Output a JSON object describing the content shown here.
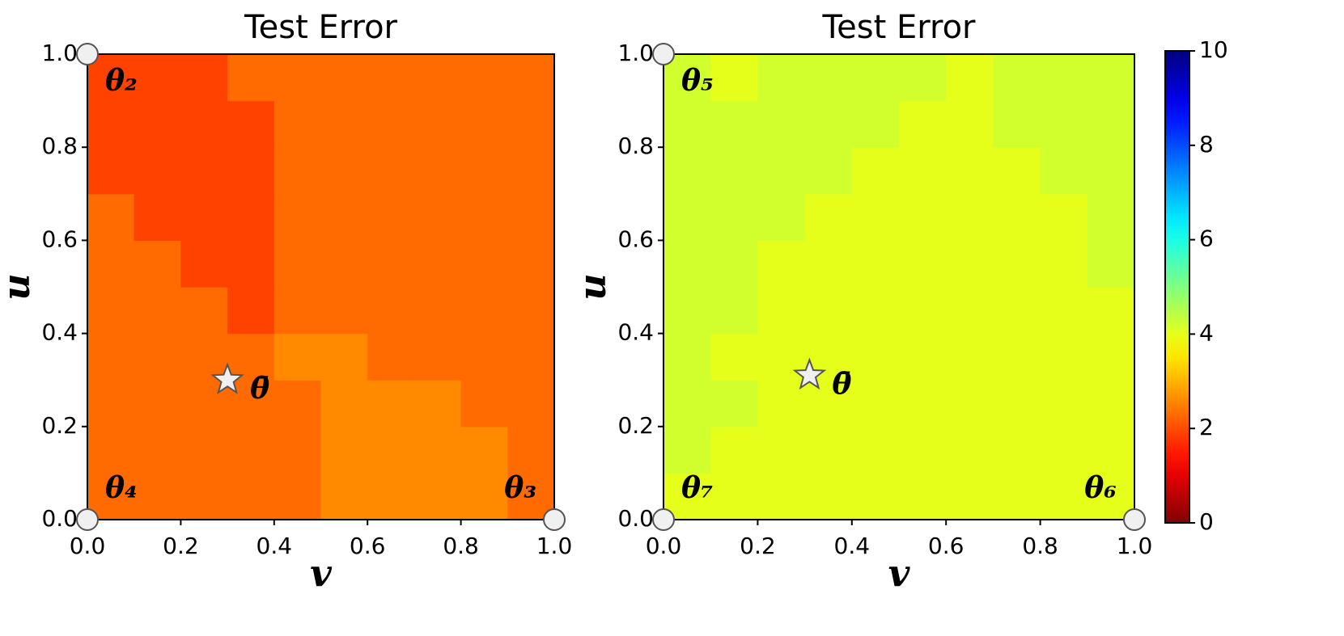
{
  "chart_data": [
    {
      "type": "heatmap",
      "title": "Test Error",
      "xlabel": "v",
      "ylabel": "u",
      "colormap": "jet_r",
      "clim": [
        0,
        10
      ],
      "xlim": [
        0,
        1
      ],
      "ylim": [
        0,
        1
      ],
      "xticks": [
        {
          "value": 0,
          "label": "0.0"
        },
        0.2,
        0.4,
        0.6,
        0.8,
        {
          "value": 1,
          "label": "1.0"
        }
      ],
      "yticks": [
        {
          "value": 0,
          "label": "0.0"
        },
        0.2,
        0.4,
        0.6,
        0.8,
        {
          "value": 1,
          "label": "1.0"
        }
      ],
      "z": [
        [
          2.3,
          2.3,
          2.3,
          2.3,
          2.3,
          2.6,
          2.6,
          2.6,
          2.6,
          2.3
        ],
        [
          2.3,
          2.3,
          2.3,
          2.3,
          2.3,
          2.6,
          2.6,
          2.6,
          2.6,
          2.3
        ],
        [
          2.3,
          2.3,
          2.3,
          2.3,
          2.3,
          2.6,
          2.6,
          2.6,
          2.3,
          2.3
        ],
        [
          2.3,
          2.3,
          2.3,
          2.3,
          2.6,
          2.6,
          2.3,
          2.3,
          2.3,
          2.3
        ],
        [
          2.3,
          2.3,
          2.3,
          1.9,
          2.3,
          2.3,
          2.3,
          2.3,
          2.3,
          2.3
        ],
        [
          2.3,
          2.3,
          1.9,
          1.9,
          2.3,
          2.3,
          2.3,
          2.3,
          2.3,
          2.3
        ],
        [
          2.3,
          1.9,
          1.9,
          1.9,
          2.3,
          2.3,
          2.3,
          2.3,
          2.3,
          2.3
        ],
        [
          1.9,
          1.9,
          1.9,
          1.9,
          2.3,
          2.3,
          2.3,
          2.3,
          2.3,
          2.3
        ],
        [
          1.9,
          1.9,
          1.9,
          1.9,
          2.3,
          2.3,
          2.3,
          2.3,
          2.3,
          2.3
        ],
        [
          1.9,
          1.9,
          1.9,
          2.3,
          2.3,
          2.3,
          2.3,
          2.3,
          2.3,
          2.3
        ]
      ],
      "annotations": [
        {
          "label": "θ₂",
          "x": 0,
          "y": 1,
          "marker": "circle"
        },
        {
          "label": "θ₄",
          "x": 0,
          "y": 0,
          "marker": "circle"
        },
        {
          "label": "θ₃",
          "x": 1,
          "y": 0,
          "marker": "circle"
        },
        {
          "label": "θ̄",
          "x": 0.3,
          "y": 0.3,
          "marker": "star"
        }
      ]
    },
    {
      "type": "heatmap",
      "title": "Test Error",
      "xlabel": "v",
      "ylabel": "u",
      "colormap": "jet_r",
      "clim": [
        0,
        10
      ],
      "xlim": [
        0,
        1
      ],
      "ylim": [
        0,
        1
      ],
      "xticks": [
        {
          "value": 0,
          "label": "0.0"
        },
        0.2,
        0.4,
        0.6,
        0.8,
        {
          "value": 1,
          "label": "1.0"
        }
      ],
      "yticks": [
        {
          "value": 0,
          "label": "0.0"
        },
        0.2,
        0.4,
        0.6,
        0.8,
        {
          "value": 1,
          "label": "1.0"
        }
      ],
      "z": [
        [
          4.0,
          4.0,
          4.0,
          4.0,
          4.0,
          4.0,
          4.0,
          4.0,
          4.0,
          4.0
        ],
        [
          4.2,
          4.0,
          4.0,
          4.0,
          4.0,
          4.0,
          4.0,
          4.0,
          4.0,
          4.0
        ],
        [
          4.2,
          4.2,
          4.0,
          4.0,
          4.0,
          4.0,
          4.0,
          4.0,
          4.0,
          4.0
        ],
        [
          4.2,
          4.0,
          4.0,
          4.0,
          4.0,
          4.0,
          4.0,
          4.0,
          4.0,
          4.0
        ],
        [
          4.2,
          4.2,
          4.0,
          4.0,
          4.0,
          4.0,
          4.0,
          4.0,
          4.0,
          4.0
        ],
        [
          4.2,
          4.2,
          4.0,
          4.0,
          4.0,
          4.0,
          4.0,
          4.0,
          4.0,
          4.2
        ],
        [
          4.2,
          4.2,
          4.2,
          4.0,
          4.0,
          4.0,
          4.0,
          4.0,
          4.0,
          4.2
        ],
        [
          4.2,
          4.2,
          4.2,
          4.2,
          4.0,
          4.0,
          4.0,
          4.0,
          4.2,
          4.2
        ],
        [
          4.2,
          4.2,
          4.2,
          4.2,
          4.2,
          4.0,
          4.0,
          4.2,
          4.2,
          4.2
        ],
        [
          4.2,
          4.0,
          4.2,
          4.2,
          4.2,
          4.2,
          4.0,
          4.2,
          4.2,
          4.2
        ]
      ],
      "annotations": [
        {
          "label": "θ₅",
          "x": 0,
          "y": 1,
          "marker": "circle"
        },
        {
          "label": "θ₇",
          "x": 0,
          "y": 0,
          "marker": "circle"
        },
        {
          "label": "θ₆",
          "x": 1,
          "y": 0,
          "marker": "circle"
        },
        {
          "label": "θ̄",
          "x": 0.31,
          "y": 0.31,
          "marker": "star"
        }
      ],
      "colorbar": {
        "ticks": [
          0,
          2,
          4,
          6,
          8,
          10
        ]
      }
    }
  ]
}
